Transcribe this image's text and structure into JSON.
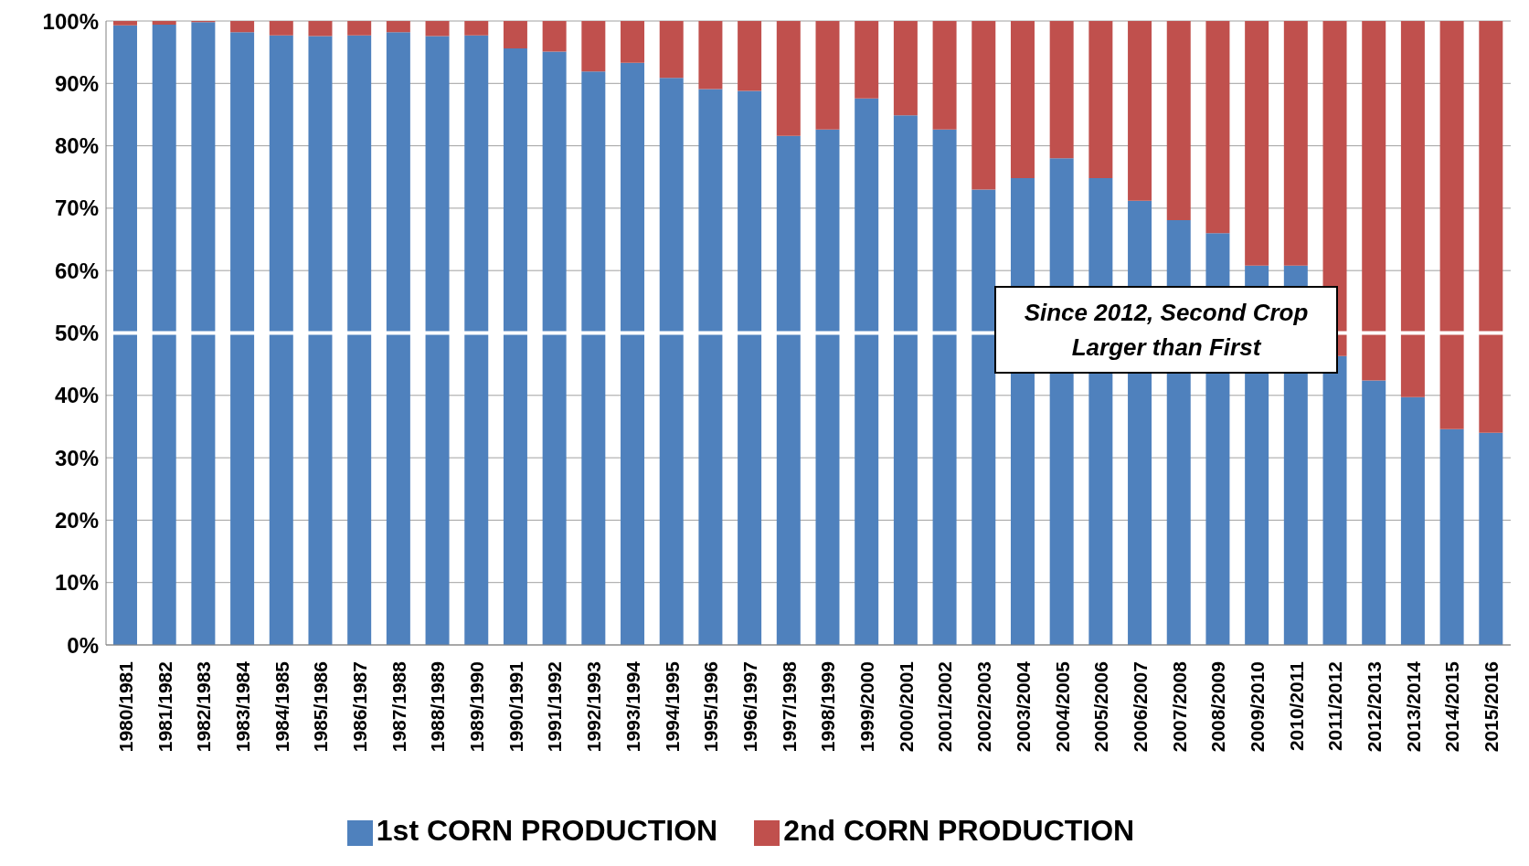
{
  "chart_data": {
    "type": "bar",
    "stacked": true,
    "categories": [
      "1980/1981",
      "1981/1982",
      "1982/1983",
      "1983/1984",
      "1984/1985",
      "1985/1986",
      "1986/1987",
      "1987/1988",
      "1988/1989",
      "1989/1990",
      "1990/1991",
      "1991/1992",
      "1992/1993",
      "1993/1994",
      "1994/1995",
      "1995/1996",
      "1996/1997",
      "1997/1998",
      "1998/1999",
      "1999/2000",
      "2000/2001",
      "2001/2002",
      "2002/2003",
      "2003/2004",
      "2004/2005",
      "2005/2006",
      "2006/2007",
      "2007/2008",
      "2008/2009",
      "2009/2010",
      "2010/2011",
      "2011/2012",
      "2012/2013",
      "2013/2014",
      "2014/2015",
      "2015/2016"
    ],
    "series": [
      {
        "name": "1st CORN PRODUCTION",
        "color": "#4f81bd",
        "values": [
          99.3,
          99.4,
          99.8,
          98.2,
          97.7,
          97.6,
          97.7,
          98.2,
          97.6,
          97.7,
          95.6,
          95.1,
          91.9,
          93.3,
          90.9,
          89.1,
          88.8,
          81.6,
          82.6,
          87.6,
          84.9,
          82.6,
          73.0,
          74.8,
          78.0,
          74.8,
          71.2,
          68.1,
          66.0,
          60.8,
          60.8,
          46.3,
          42.4,
          39.7,
          34.6,
          34.0
        ]
      },
      {
        "name": "2nd CORN PRODUCTION",
        "color": "#c0504d",
        "values": [
          0.7,
          0.6,
          0.2,
          1.8,
          2.3,
          2.4,
          2.3,
          1.8,
          2.4,
          2.3,
          4.4,
          4.9,
          8.1,
          6.7,
          9.1,
          10.9,
          11.2,
          18.4,
          17.4,
          12.4,
          15.1,
          17.4,
          27.0,
          25.2,
          22.0,
          25.2,
          28.8,
          31.9,
          34.0,
          39.2,
          39.2,
          53.7,
          57.6,
          60.3,
          65.4,
          66.0
        ]
      }
    ],
    "ylim": [
      0,
      100
    ],
    "yticks": [
      {
        "value": 0,
        "label": "0%"
      },
      {
        "value": 10,
        "label": "10%"
      },
      {
        "value": 20,
        "label": "20%"
      },
      {
        "value": 30,
        "label": "30%"
      },
      {
        "value": 40,
        "label": "40%"
      },
      {
        "value": 50,
        "label": "50%"
      },
      {
        "value": 60,
        "label": "60%"
      },
      {
        "value": 70,
        "label": "70%"
      },
      {
        "value": 80,
        "label": "80%"
      },
      {
        "value": 90,
        "label": "90%"
      },
      {
        "value": 100,
        "label": "100%"
      }
    ],
    "grid": "y",
    "legend": "bottom",
    "ref_lines": [
      {
        "axis": "y",
        "value": 50,
        "color": "#ffffff"
      }
    ],
    "annotations": [
      "Since 2012, Second Crop Larger than First"
    ]
  }
}
